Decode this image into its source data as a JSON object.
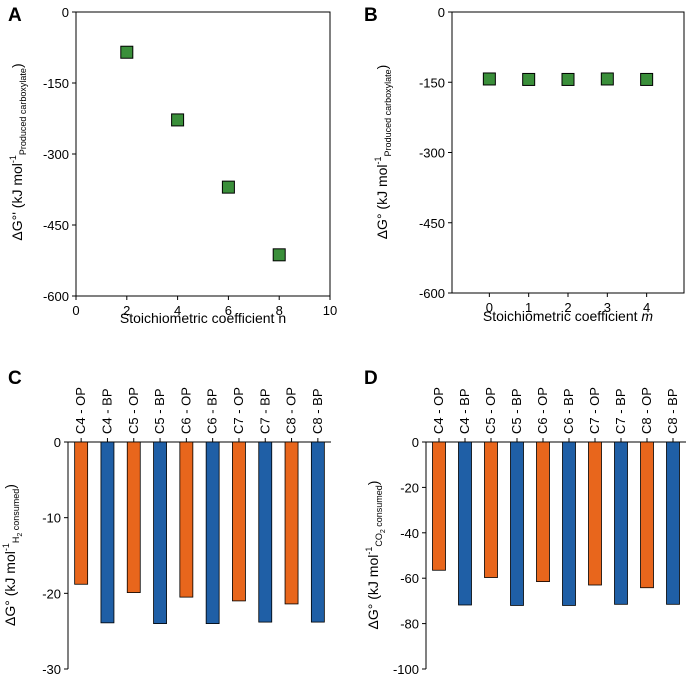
{
  "colors": {
    "orange": "#E8661C",
    "blue": "#1F5FA6",
    "green": "#3A8F3A",
    "axis": "#000000"
  },
  "chart_data": [
    {
      "panel": "A",
      "type": "scatter",
      "x": [
        2,
        4,
        6,
        8
      ],
      "y": [
        -85,
        -228,
        -370,
        -513
      ],
      "xlim": [
        0,
        10
      ],
      "ylim": [
        -600,
        0
      ],
      "xticks": [
        "0",
        "2",
        "4",
        "6",
        "8",
        "10"
      ],
      "yticks": [
        "0",
        "-150",
        "-300",
        "-450",
        "-600"
      ],
      "xlabel": "Stoichiometric coefficient n",
      "ylabel_main": "ΔG°' (kJ mol",
      "ylabel_sup": "-1",
      "ylabel_sub": "Produced carboxylate",
      "ylabel_end": ")"
    },
    {
      "panel": "B",
      "type": "scatter",
      "x": [
        0,
        1,
        2,
        3,
        4
      ],
      "y": [
        -143,
        -144,
        -144,
        -143,
        -144
      ],
      "xlim": [
        -0.95,
        4.95
      ],
      "ylim": [
        -600,
        0
      ],
      "xticks": [
        "0",
        "1",
        "2",
        "3",
        "4"
      ],
      "yticks": [
        "0",
        "-150",
        "-300",
        "-450",
        "-600"
      ],
      "xlabel_main": "Stoichiometric coefficient ",
      "xlabel_italic": "m",
      "ylabel_main": "ΔG° (kJ mol",
      "ylabel_sup": "-1",
      "ylabel_sub": "Produced carboxylate",
      "ylabel_end": ")"
    },
    {
      "panel": "C",
      "type": "bar",
      "categories": [
        "C4 - OP",
        "C4 - BP",
        "C5 - OP",
        "C5 - BP",
        "C6 - OP",
        "C6 - BP",
        "C7 - OP",
        "C7 - BP",
        "C8 - OP",
        "C8 - BP"
      ],
      "values": [
        -18.8,
        -23.9,
        -19.9,
        -24.0,
        -20.5,
        -24.0,
        -21.0,
        -23.8,
        -21.4,
        -23.8
      ],
      "ylim": [
        -30,
        0
      ],
      "yticks": [
        "0",
        "-10",
        "-20",
        "-30"
      ],
      "ylabel_main": "ΔG° (kJ mol",
      "ylabel_sup": "-1",
      "ylabel_sub": "H",
      "ylabel_subsub": "2",
      "ylabel_sub2": " consumed",
      "ylabel_end": ")"
    },
    {
      "panel": "D",
      "type": "bar",
      "categories": [
        "C4 - OP",
        "C4 - BP",
        "C5 - OP",
        "C5 - BP",
        "C6 - OP",
        "C6 - BP",
        "C7 - OP",
        "C7 - BP",
        "C8 - OP",
        "C8 - BP"
      ],
      "values": [
        -56.5,
        -71.8,
        -59.7,
        -72.0,
        -61.5,
        -72.0,
        -63.0,
        -71.5,
        -64.2,
        -71.5
      ],
      "ylim": [
        -100,
        0
      ],
      "yticks": [
        "0",
        "-20",
        "-40",
        "-60",
        "-80",
        "-100"
      ],
      "ylabel_main": "ΔG° (kJ mol",
      "ylabel_sup": "-1",
      "ylabel_sub": "CO",
      "ylabel_subsub": "2",
      "ylabel_sub2": " consumed",
      "ylabel_end": ")"
    }
  ]
}
